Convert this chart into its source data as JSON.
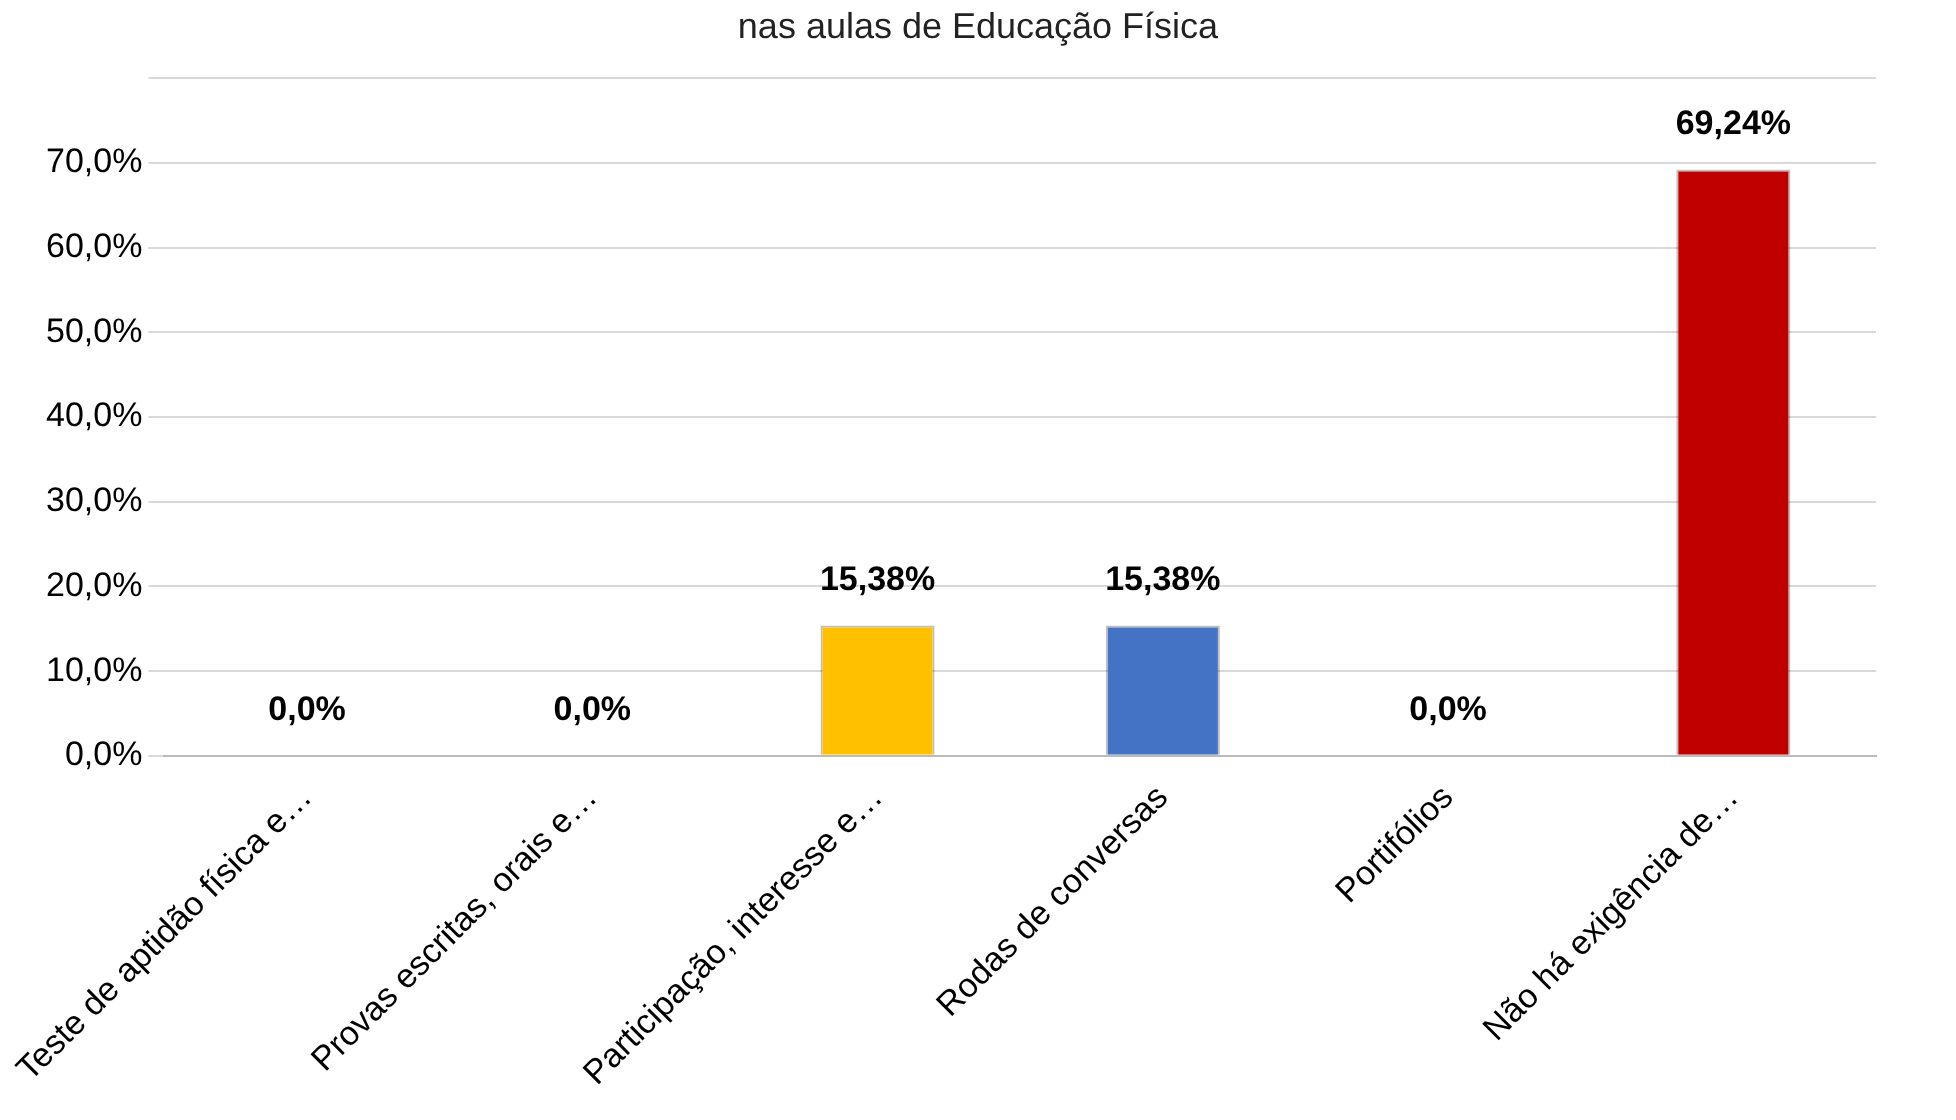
{
  "chart_data": {
    "type": "bar",
    "title": "nas aulas de Educação Física",
    "categories": [
      "Teste de aptidão física e…",
      "Provas escritas, orais e…",
      "Participação, interesse e…",
      "Rodas de conversas",
      "Portifólios",
      "Não há exigência de…"
    ],
    "values": [
      0,
      0,
      15.38,
      15.38,
      0,
      69.24
    ],
    "colors": [
      "#1f2a44",
      "#1f2a44",
      "#ffc000",
      "#4472c4",
      "#1f2a44",
      "#c00000"
    ],
    "value_labels": [
      "0,0%",
      "0,0%",
      "15,38%",
      "15,38%",
      "0,0%",
      "69,24%"
    ],
    "ylim": [
      0,
      80
    ],
    "yticks": [
      {
        "value": 0,
        "label": "0,0%"
      },
      {
        "value": 10,
        "label": "10,0%"
      },
      {
        "value": 20,
        "label": "20,0%"
      },
      {
        "value": 30,
        "label": "30,0%"
      },
      {
        "value": 40,
        "label": "40,0%"
      },
      {
        "value": 50,
        "label": "50,0%"
      },
      {
        "value": 60,
        "label": "60,0%"
      },
      {
        "value": 70,
        "label": "70,0%"
      },
      {
        "value": 80,
        "label": null
      }
    ],
    "grid": "y",
    "legend": false
  }
}
